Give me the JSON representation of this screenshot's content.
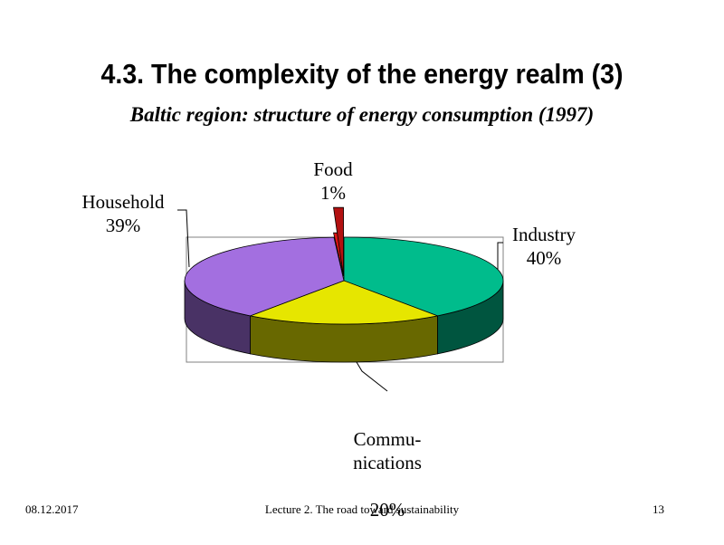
{
  "slide": {
    "title": "4.3. The complexity of the energy realm (3)",
    "subtitle": "Baltic region: structure of  energy consumption (1997)"
  },
  "chart_data": {
    "type": "pie",
    "title": "Baltic region: structure of  energy consumption (1997)",
    "three_d": true,
    "legend": "none",
    "slices": [
      {
        "name": "Industry",
        "value": 40,
        "label": "40%",
        "color": "#00BC8C"
      },
      {
        "name": "Commu-\nnications",
        "value": 20,
        "label": "20%",
        "color": "#E6E600"
      },
      {
        "name": "Household",
        "value": 39,
        "label": "39%",
        "color": "#A36FE0"
      },
      {
        "name": "Food",
        "value": 1,
        "label": "1%",
        "color": "#E01515"
      }
    ]
  },
  "footer": {
    "date": "08.12.2017",
    "lecture": "Lecture 2. The road toward sustainability",
    "page": "13"
  }
}
